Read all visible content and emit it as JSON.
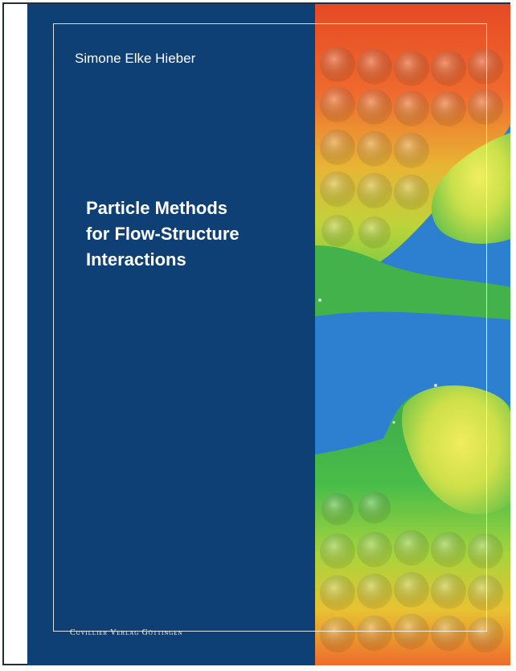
{
  "cover": {
    "author": "Simone Elke Hieber",
    "title_lines": [
      "Particle Methods",
      "for Flow-Structure",
      "Interactions"
    ],
    "publisher": "Cuvillier Verlag Göttingen"
  },
  "colors": {
    "panel_blue": "#0e3f75",
    "frame_white": "#ffffff",
    "art_orange": "#e8582a",
    "art_yellow": "#e8d832",
    "art_green": "#4cc24a",
    "art_blue": "#2d7fd0"
  }
}
